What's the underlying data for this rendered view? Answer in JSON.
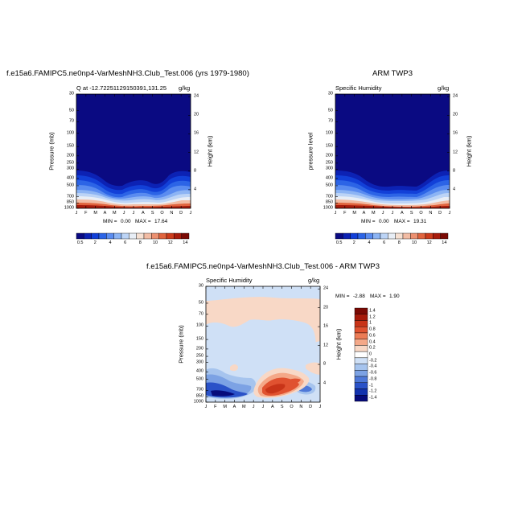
{
  "chart_data": [
    {
      "type": "heatmap",
      "title": "f.e15a6.FAMIPC5.ne0np4-VarMeshNH3.Club_Test.006 (yrs 1979-1980)",
      "left_label": "Q at -12.72251129150391,131.25",
      "right_label": "g/kg",
      "ylabel": "Pressure (mb)",
      "ylabel_right": "Height (km)",
      "months": [
        "J",
        "F",
        "M",
        "A",
        "M",
        "J",
        "J",
        "A",
        "S",
        "O",
        "N",
        "D",
        "J"
      ],
      "pressure_ticks": [
        "30",
        "50",
        "70",
        "100",
        "150",
        "200",
        "250",
        "300",
        "400",
        "500",
        "700",
        "850",
        "1000"
      ],
      "height_ticks": [
        "24",
        "20",
        "16",
        "12",
        "8",
        "4"
      ],
      "min_label": "MIN =",
      "min": "0.00",
      "max_label": "MAX =",
      "max": "17.64",
      "colorbar_labels": [
        "0.5",
        "2",
        "4",
        "6",
        "8",
        "10",
        "12",
        "14"
      ]
    },
    {
      "type": "heatmap",
      "title": "ARM TWP3",
      "left_label": "Specific Humidity",
      "right_label": "g/kg",
      "ylabel": "pressure level",
      "ylabel_right": "Height (km)",
      "months": [
        "J",
        "F",
        "M",
        "A",
        "M",
        "J",
        "J",
        "A",
        "S",
        "O",
        "N",
        "D",
        "J"
      ],
      "pressure_ticks": [
        "30",
        "50",
        "70",
        "100",
        "150",
        "200",
        "250",
        "300",
        "400",
        "500",
        "700",
        "850",
        "1000"
      ],
      "height_ticks": [
        "24",
        "20",
        "16",
        "12",
        "8",
        "4"
      ],
      "min_label": "MIN =",
      "min": "0.00",
      "max_label": "MAX =",
      "max": "19.31",
      "colorbar_labels": [
        "0.5",
        "2",
        "4",
        "6",
        "8",
        "10",
        "12",
        "14"
      ]
    },
    {
      "type": "heatmap",
      "title": "f.e15a6.FAMIPC5.ne0np4-VarMeshNH3.Club_Test.006 - ARM TWP3",
      "left_label": "Specific Humidity",
      "right_label": "g/kg",
      "ylabel": "Pressure (mb)",
      "ylabel_right": "Height (km)",
      "months": [
        "J",
        "F",
        "M",
        "A",
        "M",
        "J",
        "J",
        "A",
        "S",
        "O",
        "N",
        "D",
        "J"
      ],
      "pressure_ticks": [
        "30",
        "50",
        "70",
        "100",
        "150",
        "200",
        "250",
        "300",
        "400",
        "500",
        "700",
        "850",
        "1000"
      ],
      "height_ticks": [
        "24",
        "20",
        "16",
        "12",
        "8",
        "4"
      ],
      "min_label": "MIN =",
      "min": "-2.88",
      "max_label": "MAX =",
      "max": "1.90",
      "colorbar_labels": [
        "1.4",
        "1.2",
        "1",
        "0.8",
        "0.6",
        "0.4",
        "0.2",
        "0",
        "-0.2",
        "-0.4",
        "-0.6",
        "-0.8",
        "-1",
        "-1.2",
        "-1.4"
      ]
    }
  ],
  "colors": {
    "seq": [
      "#0a0a82",
      "#0c22b4",
      "#1240d8",
      "#2c64e6",
      "#5a8cf0",
      "#8cb4f4",
      "#bcd4f6",
      "#e8eef6",
      "#f6e0d2",
      "#f2bca4",
      "#ec9070",
      "#e0643e",
      "#cc3c1c",
      "#a81c0c",
      "#7a0a04"
    ],
    "div": [
      "#7a0a04",
      "#a61a0a",
      "#c83418",
      "#e05230",
      "#ec7c56",
      "#f4a888",
      "#f8d8c6",
      "#ffffff",
      "#cfe0f6",
      "#a6c4ee",
      "#7ca2e4",
      "#4e78d8",
      "#2a52c8",
      "#1232ae",
      "#060a7a"
    ]
  }
}
